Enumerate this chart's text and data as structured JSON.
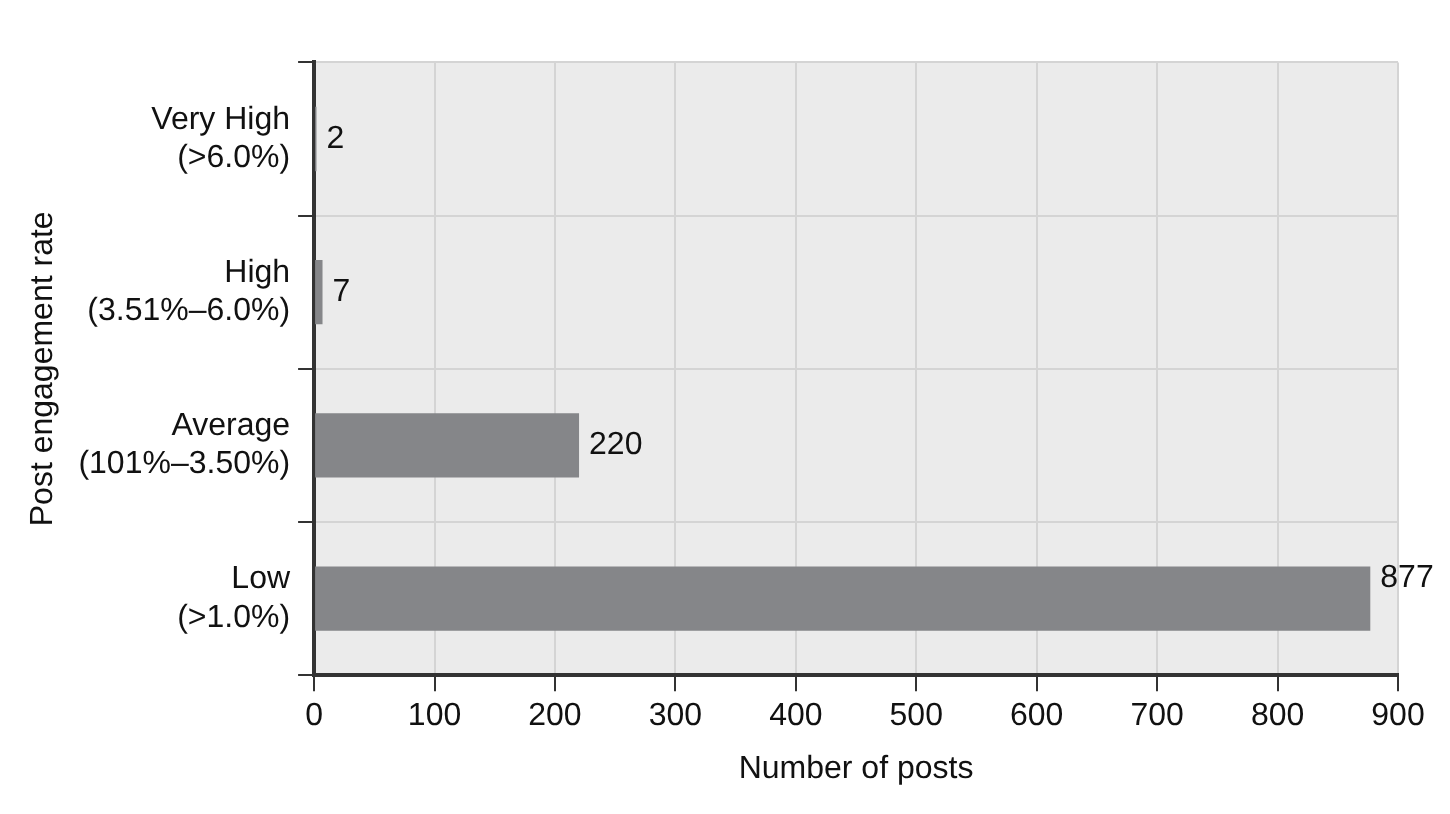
{
  "chart_data": {
    "type": "bar",
    "orientation": "horizontal",
    "xlabel": "Number of posts",
    "ylabel": "Post engagement rate",
    "categories": [
      "Very High\n(>6.0%)",
      "High\n(3.51%–6.0%)",
      "Average\n(101%–3.50%)",
      "Low\n(>1.0%)"
    ],
    "values": [
      2,
      7,
      220,
      877
    ],
    "color": "#858689",
    "xlim": [
      0,
      900
    ],
    "xticks": [
      0,
      100,
      200,
      300,
      400,
      500,
      600,
      700,
      800,
      900
    ],
    "grid": true,
    "legend": false,
    "data_labels": true
  }
}
